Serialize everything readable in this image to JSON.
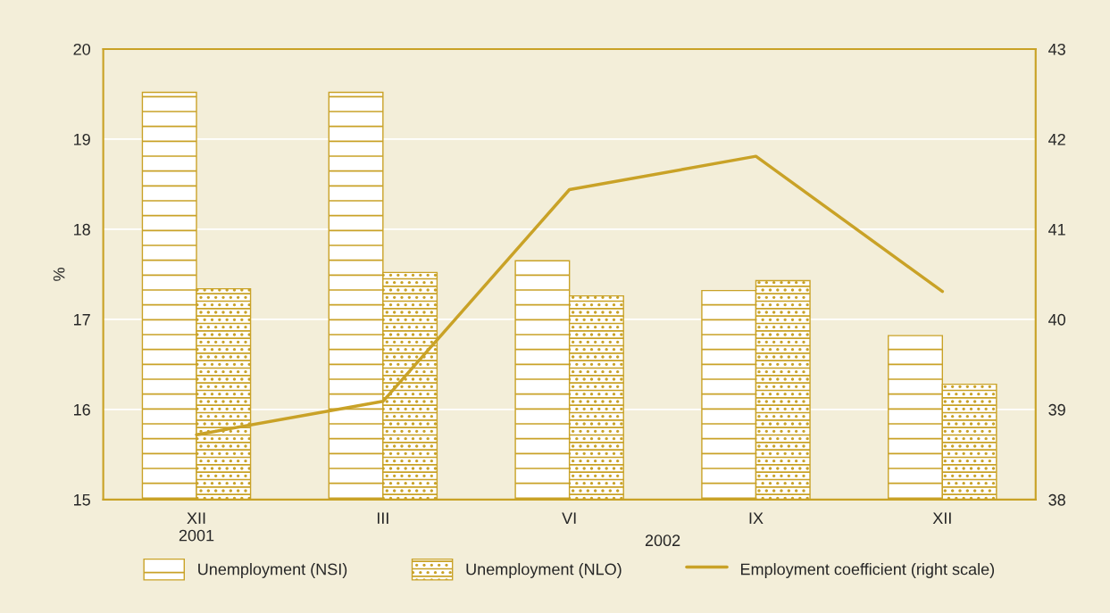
{
  "chart_data": {
    "type": "bar",
    "categories": [
      "XII\n2001",
      "III",
      "VI",
      "IX",
      "XII"
    ],
    "ylabel": "%",
    "series": [
      {
        "name": "Unemployment (NSI)",
        "color": "#c9a227",
        "values": [
          19.52,
          19.52,
          17.65,
          17.32,
          16.82
        ]
      },
      {
        "name": "Unemployment (NLO)",
        "color": "#c9a227",
        "values": [
          17.34,
          17.52,
          17.26,
          17.43,
          16.28
        ]
      },
      {
        "name": "Employment coefficient (right scale)",
        "type": "line",
        "axis": "y2",
        "color": "#c9a227",
        "values": [
          38.72,
          39.09,
          41.44,
          41.81,
          40.31
        ]
      }
    ],
    "ylim": [
      15,
      20
    ],
    "yticks": [
      15,
      16,
      17,
      18,
      19,
      20
    ],
    "y2lim": [
      38,
      43
    ],
    "y2ticks": [
      38,
      39,
      40,
      41,
      42,
      43
    ],
    "annotations": [
      "2002"
    ],
    "grid": "y",
    "legend": "bottom",
    "marker": "none",
    "line_style": "solid"
  }
}
